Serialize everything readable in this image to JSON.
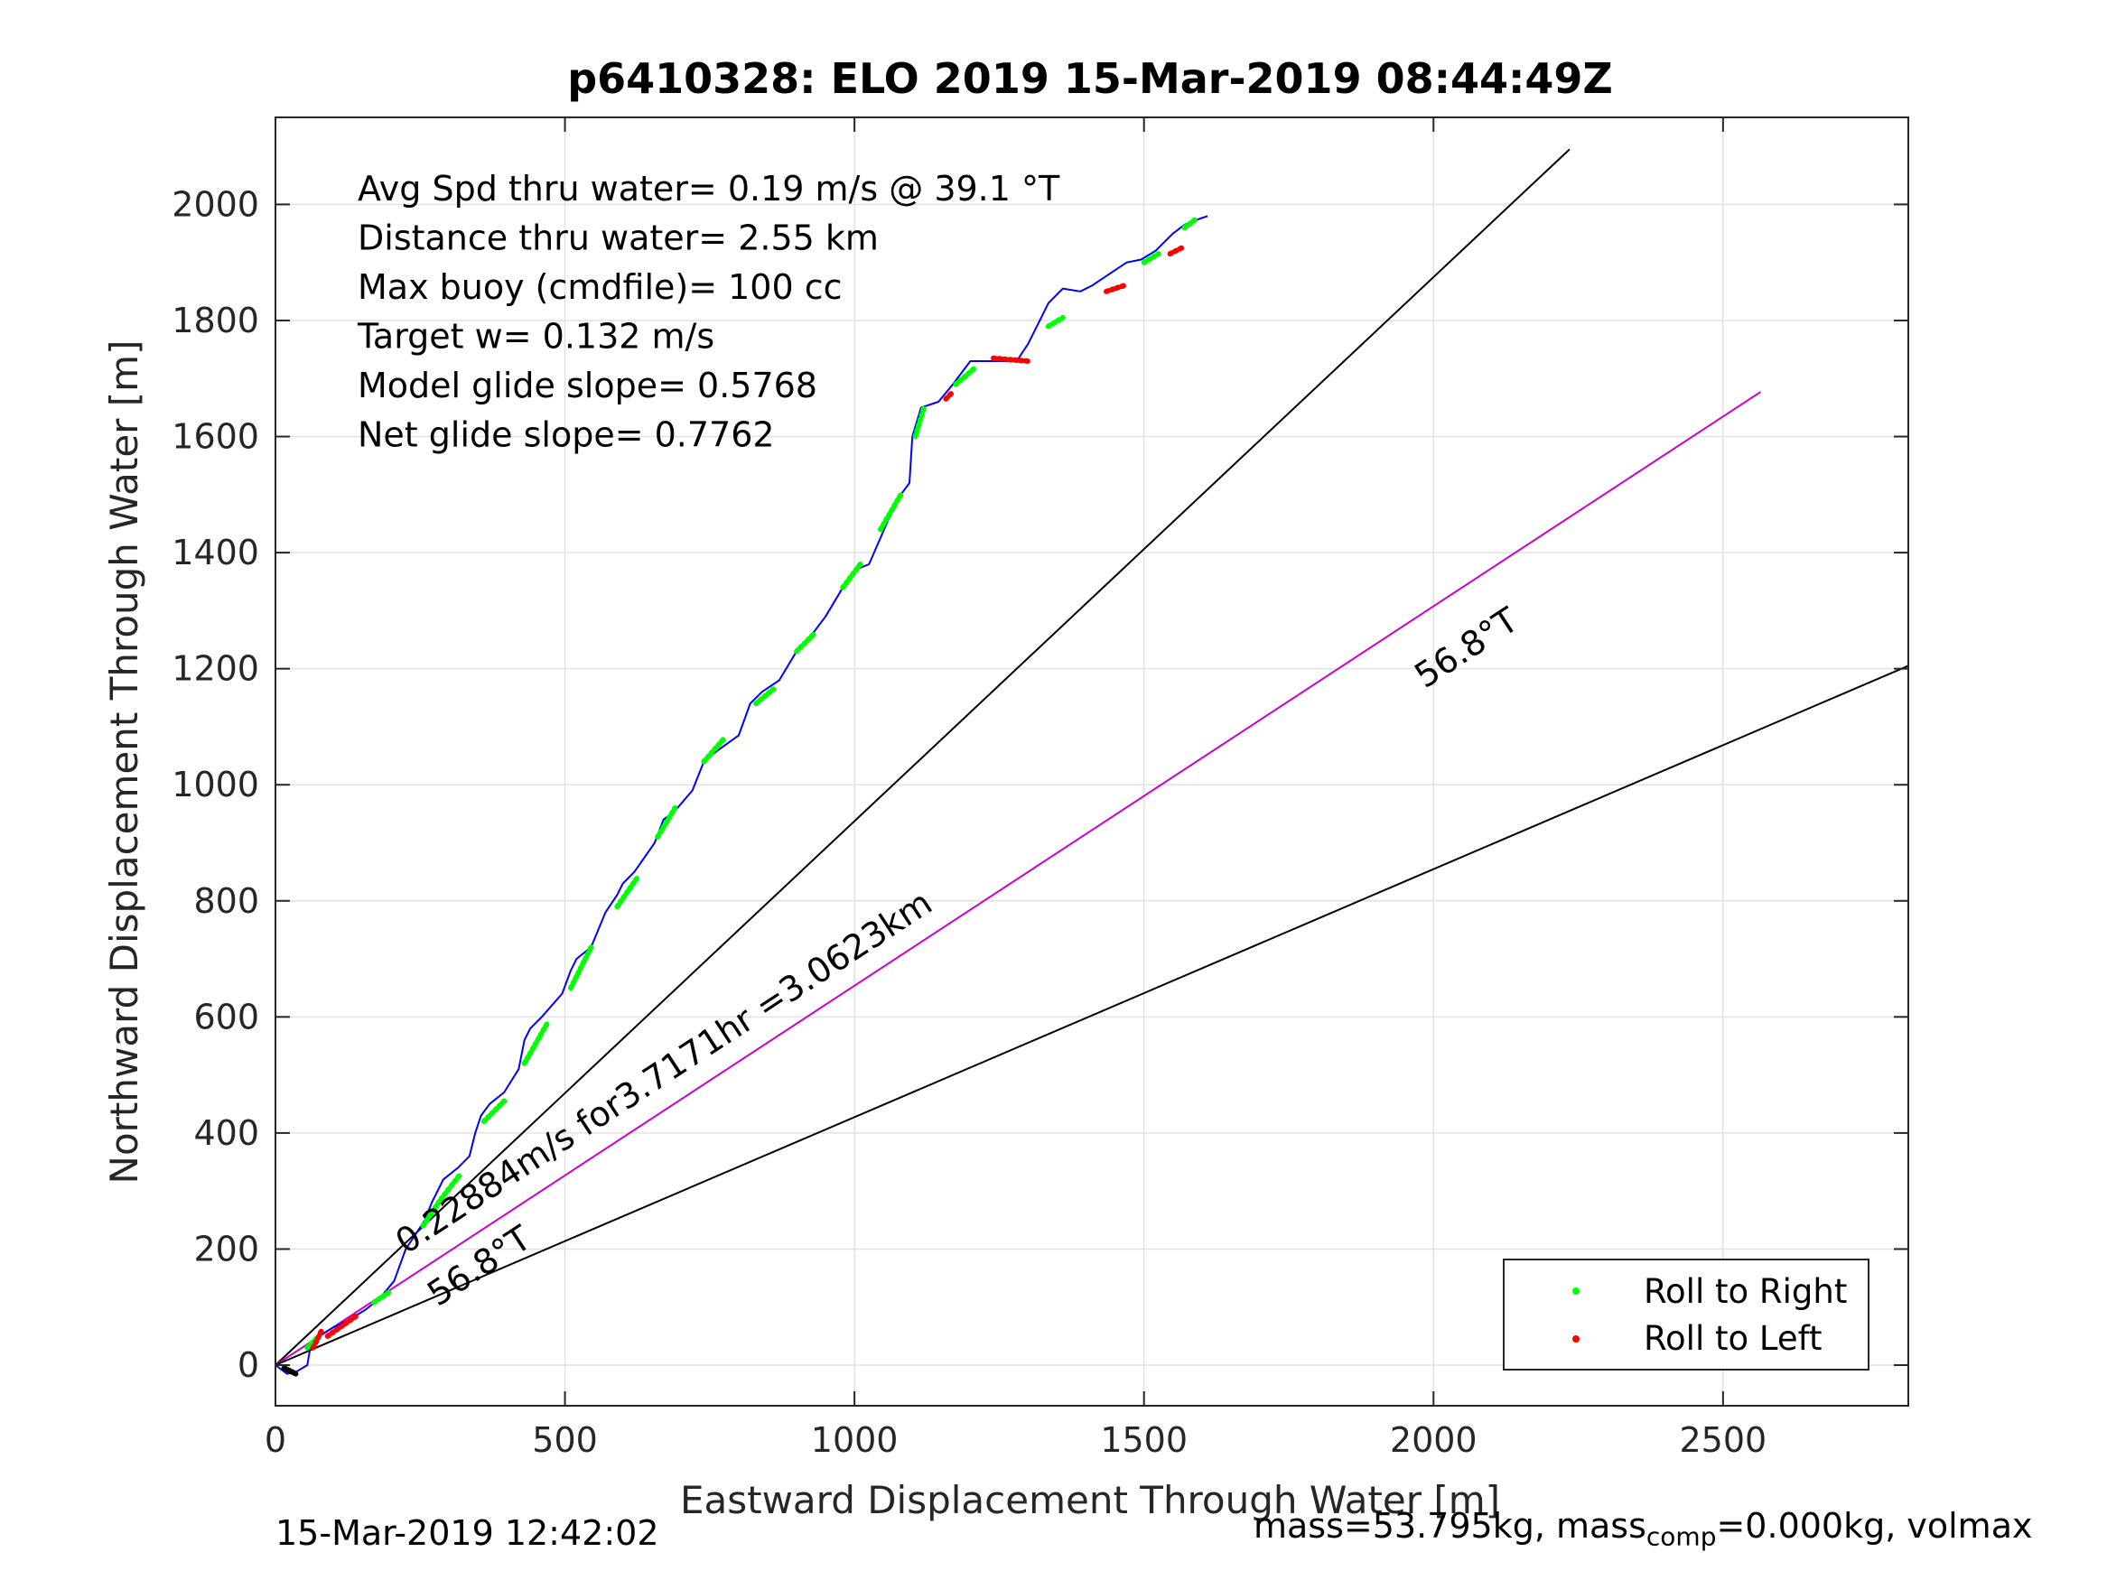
{
  "chart_data": {
    "type": "line",
    "title": "p6410328: ELO 2019 15-Mar-2019 08:44:49Z",
    "xlabel": "Eastward Displacement Through Water [m]",
    "ylabel": "Northward Displacement Through Water [m]",
    "xlim": [
      0,
      2820
    ],
    "ylim": [
      -70,
      2150
    ],
    "xticks": [
      "0",
      "500",
      "1000",
      "1500",
      "2000",
      "2500"
    ],
    "yticks": [
      "0",
      "200",
      "400",
      "600",
      "800",
      "1000",
      "1200",
      "1400",
      "1600",
      "1800",
      "2000"
    ],
    "grid": true,
    "legend_position": "bottom-right",
    "legend": [
      {
        "label": "Roll to Right",
        "color": "#00ff00"
      },
      {
        "label": "Roll to Left",
        "color": "#ff0000"
      }
    ],
    "info_lines": [
      "Avg Spd thru water=  0.19 m/s @  39.1 °T",
      "Distance thru water=  2.55 km",
      "Max buoy (cmdfile)= 100 cc",
      "Target w= 0.132 m/s",
      "Model glide slope= 0.5768",
      "Net glide slope= 0.7762"
    ],
    "reference_lines": [
      {
        "name": "upper",
        "color": "#000000",
        "x": [
          0,
          2235
        ],
        "y": [
          0,
          2095
        ]
      },
      {
        "name": "center",
        "color": "#cc00cc",
        "x": [
          0,
          2565
        ],
        "y": [
          0,
          1677
        ]
      },
      {
        "name": "lower",
        "color": "#000000",
        "x": [
          0,
          2820
        ],
        "y": [
          0,
          1205
        ]
      }
    ],
    "annotations": [
      {
        "text": "0.22884m/s for3.7171hr =3.0623km",
        "x": 225,
        "y": 190,
        "angle": 33.2
      },
      {
        "text": "56.8°T",
        "x": 280,
        "y": 100,
        "angle": 33.2
      },
      {
        "text": "56.8°T",
        "x": 1985,
        "y": 1165,
        "angle": 33.2
      }
    ],
    "track": {
      "name": "glider track",
      "color": "#0000ff",
      "x": [
        0,
        20,
        35,
        55,
        60,
        75,
        100,
        130,
        155,
        180,
        205,
        225,
        245,
        258,
        270,
        290,
        315,
        335,
        345,
        355,
        370,
        395,
        420,
        430,
        440,
        460,
        495,
        510,
        520,
        545,
        570,
        590,
        600,
        620,
        655,
        670,
        690,
        720,
        740,
        765,
        800,
        820,
        840,
        870,
        900,
        920,
        950,
        980,
        1000,
        1025,
        1060,
        1080,
        1095,
        1100,
        1115,
        1145,
        1170,
        1200,
        1245,
        1280,
        1300,
        1315,
        1335,
        1360,
        1390,
        1410,
        1440,
        1470,
        1495,
        1520,
        1550,
        1570,
        1595,
        1610
      ],
      "y": [
        0,
        -15,
        -12,
        0,
        30,
        50,
        65,
        80,
        95,
        115,
        145,
        200,
        230,
        250,
        280,
        320,
        340,
        360,
        400,
        430,
        450,
        470,
        510,
        560,
        580,
        600,
        640,
        680,
        700,
        720,
        780,
        810,
        830,
        850,
        900,
        940,
        955,
        990,
        1040,
        1060,
        1085,
        1140,
        1160,
        1180,
        1230,
        1250,
        1290,
        1340,
        1370,
        1380,
        1460,
        1500,
        1520,
        1600,
        1650,
        1660,
        1690,
        1730,
        1730,
        1730,
        1760,
        1790,
        1830,
        1855,
        1850,
        1860,
        1880,
        1900,
        1905,
        1920,
        1950,
        1965,
        1975,
        1980
      ]
    },
    "roll_right_segments": [
      [
        [
          55,
          30
        ],
        [
          75,
          50
        ]
      ],
      [
        [
          170,
          108
        ],
        [
          195,
          125
        ]
      ],
      [
        [
          255,
          240
        ],
        [
          285,
          285
        ],
        [
          320,
          330
        ]
      ],
      [
        [
          360,
          420
        ],
        [
          395,
          455
        ]
      ],
      [
        [
          430,
          520
        ],
        [
          470,
          590
        ]
      ],
      [
        [
          510,
          650
        ],
        [
          545,
          720
        ]
      ],
      [
        [
          590,
          790
        ],
        [
          625,
          840
        ]
      ],
      [
        [
          660,
          910
        ],
        [
          690,
          960
        ]
      ],
      [
        [
          740,
          1040
        ],
        [
          775,
          1080
        ]
      ],
      [
        [
          830,
          1140
        ],
        [
          860,
          1165
        ]
      ],
      [
        [
          900,
          1230
        ],
        [
          930,
          1260
        ]
      ],
      [
        [
          980,
          1340
        ],
        [
          1010,
          1380
        ]
      ],
      [
        [
          1045,
          1440
        ],
        [
          1080,
          1500
        ]
      ],
      [
        [
          1105,
          1600
        ],
        [
          1120,
          1650
        ]
      ],
      [
        [
          1175,
          1690
        ],
        [
          1210,
          1720
        ]
      ],
      [
        [
          1335,
          1790
        ],
        [
          1360,
          1805
        ]
      ],
      [
        [
          1500,
          1900
        ],
        [
          1525,
          1915
        ]
      ],
      [
        [
          1570,
          1960
        ],
        [
          1590,
          1975
        ]
      ]
    ],
    "roll_left_segments": [
      [
        [
          65,
          30
        ],
        [
          80,
          60
        ]
      ],
      [
        [
          90,
          50
        ],
        [
          140,
          85
        ]
      ],
      [
        [
          1158,
          1665
        ],
        [
          1168,
          1675
        ]
      ],
      [
        [
          1240,
          1735
        ],
        [
          1300,
          1730
        ]
      ],
      [
        [
          1435,
          1850
        ],
        [
          1465,
          1860
        ]
      ],
      [
        [
          1545,
          1915
        ],
        [
          1565,
          1925
        ]
      ]
    ],
    "start_segment": [
      [
        15,
        -5
      ],
      [
        35,
        -15
      ]
    ]
  },
  "footer": {
    "timestamp": "15-Mar-2019 12:42:02",
    "mass_prefix": "mass=53.795kg, mass",
    "mass_sub": "comp",
    "mass_suffix": "=0.000kg, volmax"
  }
}
